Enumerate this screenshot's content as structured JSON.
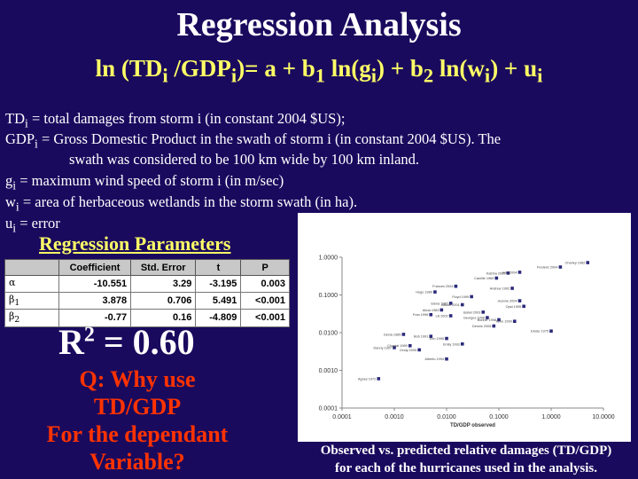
{
  "slide": {
    "title": "Regression Analysis",
    "equation": {
      "parts": [
        "ln (TD",
        "i",
        " /GDP",
        "i",
        ")= a + b",
        "1",
        " ln(g",
        "i",
        ") + b",
        "2",
        " ln(w",
        "i",
        ") + u",
        "i"
      ]
    },
    "definitions": [
      {
        "sym": "TD",
        "sub": "i",
        "text": " = total damages from storm i (in constant 2004 $US);"
      },
      {
        "sym": "GDP",
        "sub": "i",
        "text": " = Gross Domestic Product in the swath of storm i (in constant 2004 $US). The"
      },
      {
        "sym": "",
        "sub": "",
        "text": "swath was considered to be 100 km wide by 100 km inland."
      },
      {
        "sym": "g",
        "sub": "i",
        "text": " = maximum wind speed of storm i (in m/sec)"
      },
      {
        "sym": "w",
        "sub": "i",
        "text": " = area of herbaceous wetlands in the storm swath (in ha)."
      },
      {
        "sym": "u",
        "sub": "i",
        "text": " = error"
      }
    ],
    "regression_heading": "Regression Parameters",
    "table": {
      "headers": [
        "",
        "Coefficient",
        "Std. Error",
        "t",
        "P"
      ],
      "rows": [
        {
          "sym": "α",
          "sub": "",
          "values": [
            "-10.551",
            "3.29",
            "-3.195",
            "0.003"
          ]
        },
        {
          "sym": "β",
          "sub": "1",
          "values": [
            "3.878",
            "0.706",
            "5.491",
            "<0.001"
          ]
        },
        {
          "sym": "β",
          "sub": "2",
          "values": [
            "-0.77",
            "0.16",
            "-4.809",
            "<0.001"
          ]
        }
      ]
    },
    "r2": {
      "base": "R",
      "sup": "2",
      "rest": " = 0.60"
    },
    "question": [
      "Q: Why use",
      "TD/GDP",
      "For the dependant",
      "Variable?"
    ],
    "caption": [
      "Observed vs. predicted relative damages (TD/GDP)",
      "for each of the hurricanes used in the analysis."
    ],
    "colors": {
      "background": "#1a0a5e",
      "accent_yellow": "#ffff66",
      "question_red": "#ff3300"
    }
  },
  "chart_data": {
    "type": "scatter",
    "xlabel": "TD/GDP observed",
    "ylabel": "",
    "xscale": "log",
    "yscale": "log",
    "xlim": [
      0.0001,
      10
    ],
    "ylim": [
      0.0001,
      1
    ],
    "x_ticks": [
      "0.0001",
      "0.0010",
      "0.0100",
      "0.1000",
      "1.0000",
      "10.0000"
    ],
    "y_ticks": [
      "1.0000",
      "0.1000",
      "0.0100",
      "0.0010",
      "0.0001"
    ],
    "grid": false,
    "points": [
      {
        "x": 5.0,
        "y": 0.72,
        "label": "Charley 1982"
      },
      {
        "x": 1.5,
        "y": 0.55,
        "label": "Frederic 2004"
      },
      {
        "x": 0.15,
        "y": 0.38,
        "label": "Katrina 2005"
      },
      {
        "x": 0.25,
        "y": 0.4,
        "label": "Ivan 2004"
      },
      {
        "x": 0.09,
        "y": 0.28,
        "label": "Camille 1969"
      },
      {
        "x": 0.015,
        "y": 0.17,
        "label": "Frances 2004"
      },
      {
        "x": 0.18,
        "y": 0.15,
        "label": "Andrew 1992"
      },
      {
        "x": 0.006,
        "y": 0.12,
        "label": "Hugo 1989"
      },
      {
        "x": 0.03,
        "y": 0.09,
        "label": "Floyd 1999"
      },
      {
        "x": 0.25,
        "y": 0.07,
        "label": "Jeanne 2004"
      },
      {
        "x": 0.012,
        "y": 0.06,
        "label": "Elena 1985"
      },
      {
        "x": 0.02,
        "y": 0.055,
        "label": "Allison 2001"
      },
      {
        "x": 0.3,
        "y": 0.05,
        "label": "Opal 1995"
      },
      {
        "x": 0.008,
        "y": 0.04,
        "label": "Alicia 1983"
      },
      {
        "x": 0.05,
        "y": 0.035,
        "label": "Isabel 2003"
      },
      {
        "x": 0.005,
        "y": 0.03,
        "label": "Fran 1996"
      },
      {
        "x": 0.012,
        "y": 0.028,
        "label": "Lili 2002"
      },
      {
        "x": 0.06,
        "y": 0.025,
        "label": "Georges 1998"
      },
      {
        "x": 0.1,
        "y": 0.022,
        "label": "Bonnie 1998"
      },
      {
        "x": 0.2,
        "y": 0.02,
        "label": "Irene 1999"
      },
      {
        "x": 0.08,
        "y": 0.015,
        "label": "Dennis 2005"
      },
      {
        "x": 0.0015,
        "y": 0.009,
        "label": "Gloria 1985"
      },
      {
        "x": 0.005,
        "y": 0.008,
        "label": "Bob 1991"
      },
      {
        "x": 0.01,
        "y": 0.007,
        "label": "Erin 1995"
      },
      {
        "x": 1.0,
        "y": 0.011,
        "label": "Eloise 1975"
      },
      {
        "x": 0.02,
        "y": 0.005,
        "label": "Emily 1993"
      },
      {
        "x": 0.001,
        "y": 0.004,
        "label": "Danny 1997"
      },
      {
        "x": 0.002,
        "y": 0.0045,
        "label": "Chantal 1989"
      },
      {
        "x": 0.003,
        "y": 0.0035,
        "label": "Cindy 2005"
      },
      {
        "x": 0.01,
        "y": 0.002,
        "label": "Alberto 1994"
      },
      {
        "x": 0.0005,
        "y": 0.0006,
        "label": "Agnes 1972"
      }
    ]
  }
}
